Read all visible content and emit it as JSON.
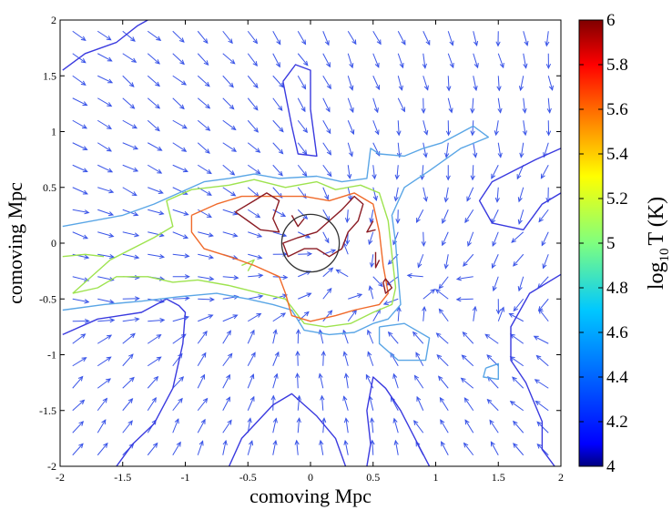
{
  "chart_data": {
    "type": "contour",
    "title": "",
    "xlabel": "comoving Mpc",
    "ylabel": "comoving Mpc",
    "xlim": [
      -2,
      2
    ],
    "ylim": [
      -2,
      2
    ],
    "xticks": [
      "-2",
      "-1.5",
      "-1",
      "-0.5",
      "0",
      "0.5",
      "1",
      "1.5",
      "2"
    ],
    "yticks": [
      "-2",
      "-1.5",
      "-1",
      "-0.5",
      "0",
      "0.5",
      "1",
      "1.5",
      "2"
    ],
    "colorbar": {
      "label_main": "log",
      "label_sub": "10",
      "label_rest": "T (K)",
      "range": [
        4,
        6
      ],
      "ticks": [
        "4",
        "4.2",
        "4.4",
        "4.6",
        "4.8",
        "5",
        "5.2",
        "5.4",
        "5.6",
        "5.8",
        "6"
      ],
      "colormap": "jet"
    },
    "circle": {
      "center": [
        0,
        0
      ],
      "radius": 0.23,
      "color": "#333333"
    },
    "contours": [
      {
        "level": 4.2,
        "color": "#3a3adf",
        "lines": [
          [
            [
              -1.98,
              1.55
            ],
            [
              -1.8,
              1.7
            ],
            [
              -1.55,
              1.8
            ],
            [
              -1.38,
              1.95
            ],
            [
              -1.3,
              2.0
            ]
          ],
          [
            [
              -0.22,
              1.45
            ],
            [
              -0.15,
              1.05
            ],
            [
              -0.1,
              0.8
            ],
            [
              0.05,
              0.78
            ],
            [
              0.0,
              1.2
            ],
            [
              0.0,
              1.55
            ],
            [
              -0.12,
              1.6
            ],
            [
              -0.22,
              1.45
            ]
          ],
          [
            [
              2.0,
              0.85
            ],
            [
              1.8,
              0.75
            ],
            [
              1.45,
              0.55
            ],
            [
              1.35,
              0.38
            ],
            [
              1.45,
              0.18
            ],
            [
              1.7,
              0.12
            ],
            [
              1.85,
              0.35
            ],
            [
              2.0,
              0.45
            ]
          ],
          [
            [
              -1.98,
              -0.82
            ],
            [
              -1.7,
              -0.68
            ],
            [
              -1.35,
              -0.62
            ],
            [
              -1.15,
              -0.5
            ],
            [
              -1.05,
              -0.56
            ],
            [
              -1.0,
              -0.62
            ],
            [
              -1.02,
              -0.9
            ],
            [
              -1.1,
              -1.3
            ],
            [
              -1.25,
              -1.62
            ],
            [
              -1.42,
              -1.8
            ],
            [
              -1.55,
              -2.0
            ]
          ],
          [
            [
              -0.65,
              -2.0
            ],
            [
              -0.55,
              -1.75
            ],
            [
              -0.3,
              -1.45
            ],
            [
              -0.15,
              -1.35
            ],
            [
              0.05,
              -1.55
            ],
            [
              0.2,
              -1.75
            ],
            [
              0.28,
              -2.0
            ]
          ],
          [
            [
              0.45,
              -2.0
            ],
            [
              0.48,
              -1.8
            ],
            [
              0.45,
              -1.5
            ],
            [
              0.5,
              -1.2
            ],
            [
              0.6,
              -1.3
            ],
            [
              0.72,
              -1.5
            ],
            [
              0.88,
              -1.85
            ],
            [
              0.95,
              -2.0
            ]
          ],
          [
            [
              2.0,
              -0.28
            ],
            [
              1.75,
              -0.45
            ],
            [
              1.6,
              -0.75
            ],
            [
              1.6,
              -1.05
            ],
            [
              1.72,
              -1.25
            ],
            [
              1.85,
              -1.6
            ],
            [
              1.85,
              -1.85
            ],
            [
              1.95,
              -2.0
            ]
          ]
        ]
      },
      {
        "level": 4.6,
        "color": "#5aa6e6",
        "lines": [
          [
            [
              -1.98,
              0.15
            ],
            [
              -1.5,
              0.25
            ],
            [
              -1.25,
              0.35
            ],
            [
              -1.05,
              0.45
            ],
            [
              -0.85,
              0.55
            ],
            [
              -0.65,
              0.58
            ],
            [
              -0.45,
              0.62
            ],
            [
              -0.25,
              0.58
            ],
            [
              0.05,
              0.6
            ],
            [
              0.25,
              0.55
            ],
            [
              0.45,
              0.58
            ],
            [
              0.48,
              0.85
            ],
            [
              0.55,
              0.8
            ],
            [
              0.75,
              0.78
            ],
            [
              0.9,
              0.85
            ],
            [
              1.05,
              0.9
            ],
            [
              1.3,
              1.05
            ],
            [
              1.42,
              0.95
            ],
            [
              1.2,
              0.85
            ],
            [
              0.95,
              0.65
            ],
            [
              0.75,
              0.5
            ],
            [
              0.65,
              0.25
            ],
            [
              0.68,
              0.0
            ],
            [
              0.7,
              -0.3
            ],
            [
              0.72,
              -0.55
            ],
            [
              0.62,
              -0.68
            ],
            [
              0.5,
              -0.72
            ],
            [
              0.35,
              -0.8
            ],
            [
              0.15,
              -0.82
            ],
            [
              -0.05,
              -0.78
            ],
            [
              -0.15,
              -0.6
            ],
            [
              -0.3,
              -0.55
            ],
            [
              -0.5,
              -0.5
            ],
            [
              -0.75,
              -0.45
            ],
            [
              -1.05,
              -0.48
            ],
            [
              -1.35,
              -0.52
            ],
            [
              -1.65,
              -0.55
            ],
            [
              -1.98,
              -0.6
            ]
          ],
          [
            [
              0.55,
              -0.75
            ],
            [
              0.75,
              -0.72
            ],
            [
              0.95,
              -0.85
            ],
            [
              0.92,
              -1.05
            ],
            [
              0.7,
              -1.05
            ],
            [
              0.55,
              -0.9
            ],
            [
              0.55,
              -0.75
            ]
          ],
          [
            [
              1.4,
              -1.12
            ],
            [
              1.5,
              -1.08
            ],
            [
              1.5,
              -1.22
            ],
            [
              1.38,
              -1.2
            ],
            [
              1.4,
              -1.12
            ]
          ]
        ]
      },
      {
        "level": 5.0,
        "color": "#9ee34f",
        "lines": [
          [
            [
              -1.9,
              -0.45
            ],
            [
              -1.6,
              -0.15
            ],
            [
              -1.25,
              0.05
            ],
            [
              -1.1,
              0.15
            ],
            [
              -1.15,
              0.38
            ],
            [
              -0.95,
              0.48
            ],
            [
              -0.65,
              0.52
            ],
            [
              -0.45,
              0.57
            ],
            [
              -0.2,
              0.5
            ],
            [
              0.05,
              0.55
            ],
            [
              0.2,
              0.48
            ],
            [
              0.4,
              0.52
            ],
            [
              0.55,
              0.45
            ],
            [
              0.62,
              0.2
            ],
            [
              0.65,
              -0.1
            ],
            [
              0.68,
              -0.4
            ],
            [
              0.65,
              -0.55
            ],
            [
              0.5,
              -0.62
            ],
            [
              0.32,
              -0.72
            ],
            [
              0.12,
              -0.75
            ],
            [
              -0.05,
              -0.72
            ],
            [
              -0.2,
              -0.5
            ],
            [
              -0.4,
              -0.45
            ],
            [
              -0.65,
              -0.38
            ],
            [
              -0.9,
              -0.33
            ],
            [
              -1.1,
              -0.35
            ],
            [
              -1.3,
              -0.3
            ],
            [
              -1.55,
              -0.3
            ],
            [
              -1.7,
              -0.4
            ],
            [
              -1.9,
              -0.45
            ]
          ],
          [
            [
              -1.98,
              -0.12
            ],
            [
              -1.8,
              -0.1
            ],
            [
              -1.65,
              -0.12
            ]
          ],
          [
            [
              -0.55,
              -0.2
            ],
            [
              -0.45,
              -0.15
            ],
            [
              -0.5,
              -0.25
            ]
          ]
        ]
      },
      {
        "level": 5.6,
        "color": "#f06a2a",
        "lines": [
          [
            [
              -0.95,
              0.25
            ],
            [
              -0.75,
              0.35
            ],
            [
              -0.55,
              0.42
            ],
            [
              -0.3,
              0.42
            ],
            [
              -0.05,
              0.42
            ],
            [
              0.15,
              0.38
            ],
            [
              0.35,
              0.45
            ],
            [
              0.5,
              0.35
            ],
            [
              0.55,
              0.1
            ],
            [
              0.58,
              -0.2
            ],
            [
              0.62,
              -0.45
            ],
            [
              0.55,
              -0.55
            ],
            [
              0.35,
              -0.6
            ],
            [
              0.2,
              -0.65
            ],
            [
              0.0,
              -0.7
            ],
            [
              -0.15,
              -0.65
            ],
            [
              -0.2,
              -0.45
            ],
            [
              -0.25,
              -0.3
            ],
            [
              -0.45,
              -0.2
            ],
            [
              -0.65,
              -0.12
            ],
            [
              -0.85,
              -0.05
            ],
            [
              -0.95,
              0.1
            ],
            [
              -0.95,
              0.25
            ]
          ]
        ]
      },
      {
        "level": 5.9,
        "color": "#8b1c24",
        "lines": [
          [
            [
              -0.6,
              0.28
            ],
            [
              -0.45,
              0.38
            ],
            [
              -0.35,
              0.45
            ],
            [
              -0.25,
              0.38
            ],
            [
              -0.3,
              0.22
            ],
            [
              -0.25,
              0.1
            ],
            [
              -0.4,
              0.12
            ],
            [
              -0.5,
              0.2
            ],
            [
              -0.6,
              0.28
            ]
          ],
          [
            [
              -0.15,
              0.25
            ],
            [
              -0.1,
              0.15
            ],
            [
              -0.05,
              0.22
            ]
          ],
          [
            [
              0.05,
              0.1
            ],
            [
              0.15,
              0.2
            ],
            [
              0.25,
              0.3
            ],
            [
              0.35,
              0.42
            ],
            [
              0.42,
              0.35
            ],
            [
              0.38,
              0.2
            ],
            [
              0.3,
              0.1
            ],
            [
              0.25,
              -0.05
            ],
            [
              0.15,
              -0.12
            ],
            [
              0.05,
              -0.05
            ],
            [
              -0.05,
              -0.05
            ],
            [
              -0.18,
              -0.12
            ],
            [
              -0.22,
              0.0
            ],
            [
              -0.1,
              0.05
            ],
            [
              0.05,
              0.1
            ]
          ],
          [
            [
              0.5,
              0.2
            ],
            [
              0.45,
              0.1
            ],
            [
              0.52,
              0.12
            ]
          ],
          [
            [
              0.52,
              -0.08
            ],
            [
              0.52,
              -0.22
            ],
            [
              0.55,
              -0.15
            ]
          ],
          [
            [
              0.58,
              -0.35
            ],
            [
              0.6,
              -0.45
            ],
            [
              0.65,
              -0.4
            ],
            [
              0.6,
              -0.32
            ],
            [
              0.58,
              -0.35
            ]
          ]
        ]
      }
    ],
    "vector_field": {
      "color": "#3a55e8",
      "spacing": 0.2,
      "converge_center": [
        0.05,
        0.0
      ],
      "description_level": 0.12
    }
  }
}
